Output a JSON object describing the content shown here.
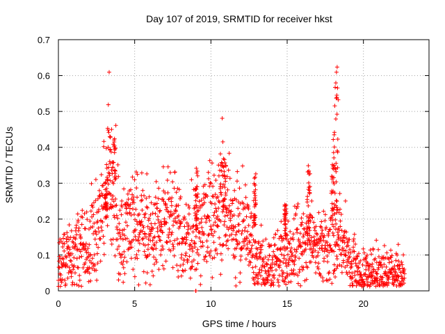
{
  "chart_data": {
    "type": "scatter",
    "title": "Day 107 of 2019, SRMTID for receiver hkst",
    "xlabel": "GPS time / hours",
    "ylabel": "SRMTID / TECUs",
    "xlim": [
      0,
      24.3
    ],
    "ylim": [
      0,
      0.7
    ],
    "xticks": [
      0,
      5,
      10,
      15,
      20
    ],
    "xtick_labels": [
      "0",
      "5",
      "10",
      "15",
      "20"
    ],
    "yticks": [
      0,
      0.1,
      0.2,
      0.3,
      0.4,
      0.5,
      0.6,
      0.7
    ],
    "ytick_labels": [
      "0",
      "0.1",
      "0.2",
      "0.3",
      "0.4",
      "0.5",
      "0.6",
      "0.7"
    ],
    "grid": true,
    "marker": "+",
    "color": "#ff0000",
    "trend": [
      [
        0.0,
        0.08
      ],
      [
        0.5,
        0.09
      ],
      [
        1.0,
        0.11
      ],
      [
        1.5,
        0.12
      ],
      [
        2.0,
        0.13
      ],
      [
        2.5,
        0.17
      ],
      [
        3.0,
        0.27
      ],
      [
        3.3,
        0.36
      ],
      [
        3.6,
        0.3
      ],
      [
        4.0,
        0.16
      ],
      [
        4.5,
        0.18
      ],
      [
        5.0,
        0.19
      ],
      [
        5.5,
        0.17
      ],
      [
        6.0,
        0.15
      ],
      [
        6.5,
        0.19
      ],
      [
        7.0,
        0.2
      ],
      [
        7.5,
        0.2
      ],
      [
        8.0,
        0.16
      ],
      [
        8.5,
        0.14
      ],
      [
        9.0,
        0.17
      ],
      [
        9.5,
        0.17
      ],
      [
        10.0,
        0.19
      ],
      [
        10.5,
        0.23
      ],
      [
        10.9,
        0.26
      ],
      [
        11.5,
        0.16
      ],
      [
        12.0,
        0.19
      ],
      [
        12.5,
        0.16
      ],
      [
        13.0,
        0.08
      ],
      [
        13.5,
        0.06
      ],
      [
        14.0,
        0.06
      ],
      [
        14.5,
        0.09
      ],
      [
        15.0,
        0.1
      ],
      [
        15.5,
        0.12
      ],
      [
        16.0,
        0.13
      ],
      [
        16.5,
        0.14
      ],
      [
        17.0,
        0.11
      ],
      [
        17.5,
        0.13
      ],
      [
        18.0,
        0.15
      ],
      [
        18.5,
        0.14
      ],
      [
        19.0,
        0.1
      ],
      [
        19.5,
        0.06
      ],
      [
        20.0,
        0.04
      ],
      [
        20.5,
        0.05
      ],
      [
        21.0,
        0.05
      ],
      [
        21.5,
        0.05
      ],
      [
        22.0,
        0.05
      ],
      [
        22.7,
        0.05
      ]
    ],
    "bursts": [
      [
        3.05,
        3.25,
        0.18,
        0.33
      ],
      [
        3.25,
        3.75,
        0.25,
        0.43
      ],
      [
        8.95,
        9.15,
        0.15,
        0.35
      ],
      [
        10.6,
        11.0,
        0.2,
        0.37
      ],
      [
        12.8,
        12.95,
        0.18,
        0.33
      ],
      [
        14.8,
        14.95,
        0.15,
        0.24
      ],
      [
        16.3,
        16.5,
        0.15,
        0.35
      ],
      [
        17.9,
        18.1,
        0.15,
        0.45
      ],
      [
        18.12,
        18.35,
        0.2,
        0.64
      ]
    ],
    "outliers": [
      [
        9.0,
        0.0
      ],
      [
        9.02,
        0.0
      ]
    ]
  }
}
